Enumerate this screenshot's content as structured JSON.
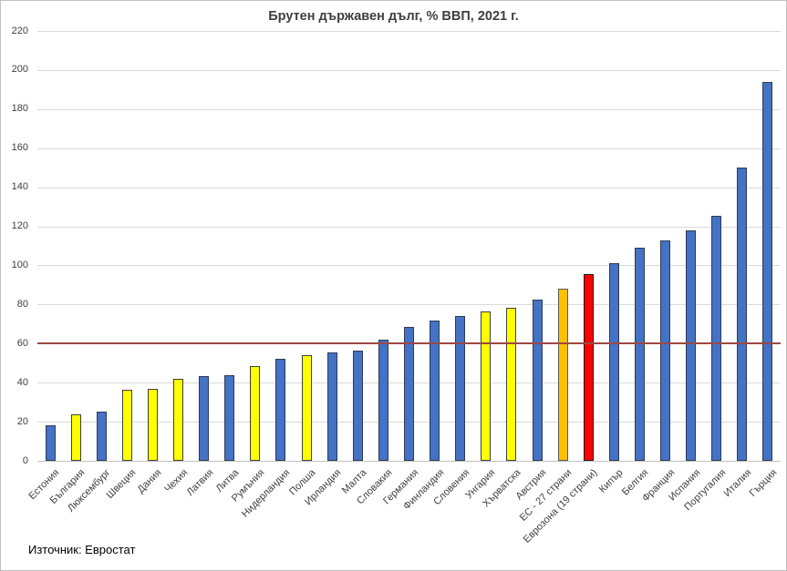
{
  "source_note": "Източник: Евростат",
  "chart_data": {
    "type": "bar",
    "title": "Брутен държавен дълг, % ВВП, 2021 г.",
    "xlabel": "",
    "ylabel": "",
    "ylim": [
      0,
      220
    ],
    "y_ticks": [
      0,
      20,
      40,
      60,
      80,
      100,
      120,
      140,
      160,
      180,
      200,
      220
    ],
    "grid": true,
    "reference_line": {
      "value": 60,
      "color": "#9c4843"
    },
    "gridline_color": "#d9d9d9",
    "axis_line_color": "#bfbfbf",
    "tick_label_color": "#404040",
    "colors": {
      "euro_member": {
        "fill": "#4472c4",
        "border": "#2e3b54"
      },
      "non_euro_member": {
        "fill": "#ffff00",
        "border": "#404040"
      },
      "eu_aggregate": {
        "fill": "#ffc000",
        "border": "#595959"
      },
      "eurozone_aggregate": {
        "fill": "#ff0000",
        "border": "#1a1a1a"
      }
    },
    "points": [
      {
        "label": "Естония",
        "value": 18,
        "group": "euro_member"
      },
      {
        "label": "България",
        "value": 24,
        "group": "non_euro_member"
      },
      {
        "label": "Люксембург",
        "value": 25,
        "group": "euro_member"
      },
      {
        "label": "Швеция",
        "value": 36.5,
        "group": "non_euro_member"
      },
      {
        "label": "Дания",
        "value": 37,
        "group": "non_euro_member"
      },
      {
        "label": "Чехия",
        "value": 42,
        "group": "non_euro_member"
      },
      {
        "label": "Латвия",
        "value": 43.5,
        "group": "euro_member"
      },
      {
        "label": "Литва",
        "value": 44,
        "group": "euro_member"
      },
      {
        "label": "Румъния",
        "value": 48.5,
        "group": "non_euro_member"
      },
      {
        "label": "Нидерландия",
        "value": 52,
        "group": "euro_member"
      },
      {
        "label": "Полша",
        "value": 54,
        "group": "non_euro_member"
      },
      {
        "label": "Ирландия",
        "value": 55.5,
        "group": "euro_member"
      },
      {
        "label": "Малта",
        "value": 56.5,
        "group": "euro_member"
      },
      {
        "label": "Словакия",
        "value": 62,
        "group": "euro_member"
      },
      {
        "label": "Германия",
        "value": 68.5,
        "group": "euro_member"
      },
      {
        "label": "Финландия",
        "value": 72,
        "group": "euro_member"
      },
      {
        "label": "Словения",
        "value": 74,
        "group": "euro_member"
      },
      {
        "label": "Унгария",
        "value": 76.5,
        "group": "non_euro_member"
      },
      {
        "label": "Хърватска",
        "value": 78.5,
        "group": "non_euro_member"
      },
      {
        "label": "Австрия",
        "value": 82.5,
        "group": "euro_member"
      },
      {
        "label": "ЕС - 27 страни",
        "value": 88,
        "group": "eu_aggregate"
      },
      {
        "label": "Еврозона (19 страни)",
        "value": 95.5,
        "group": "eurozone_aggregate"
      },
      {
        "label": "Кипър",
        "value": 101,
        "group": "euro_member"
      },
      {
        "label": "Белгия",
        "value": 109,
        "group": "euro_member"
      },
      {
        "label": "Франция",
        "value": 113,
        "group": "euro_member"
      },
      {
        "label": "Испания",
        "value": 118,
        "group": "euro_member"
      },
      {
        "label": "Португалия",
        "value": 125.5,
        "group": "euro_member"
      },
      {
        "label": "Италия",
        "value": 150,
        "group": "euro_member"
      },
      {
        "label": "Гърция",
        "value": 194,
        "group": "euro_member"
      }
    ]
  }
}
